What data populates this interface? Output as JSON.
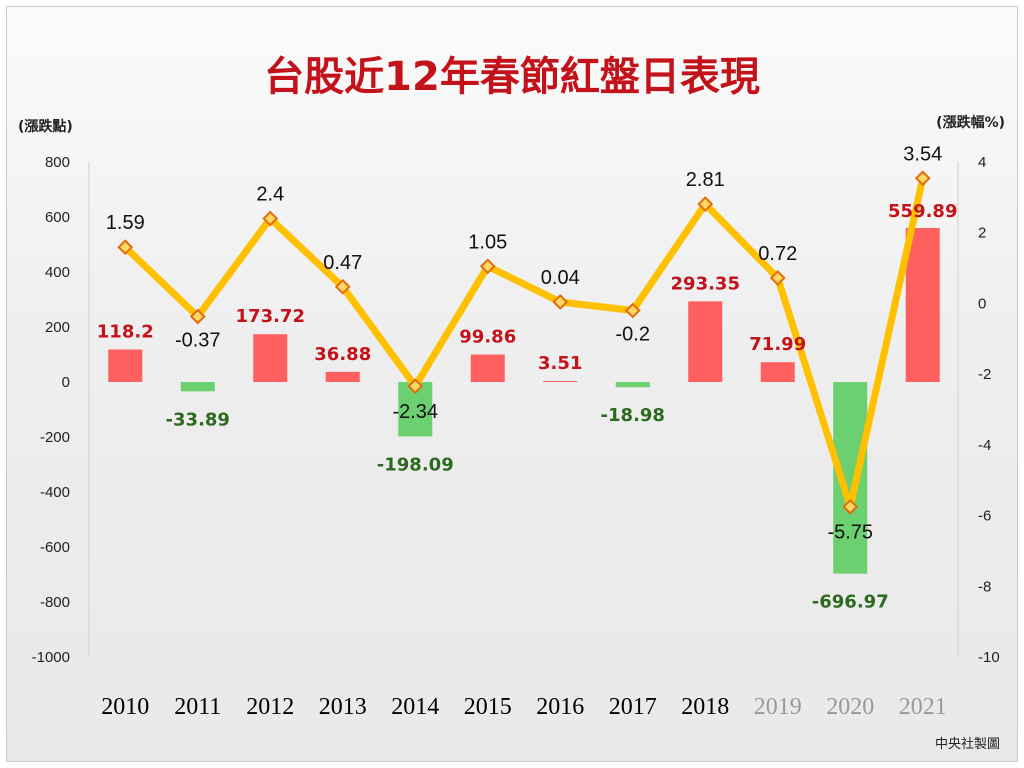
{
  "chart_data": {
    "type": "bar",
    "title": "台股近12年春節紅盤日表現",
    "ylabel_left": "(漲跌點)",
    "ylabel_right": "(漲跌幅%)",
    "credit": "中央社製圖",
    "categories": [
      "2010",
      "2011",
      "2012",
      "2013",
      "2014",
      "2015",
      "2016",
      "2017",
      "2018",
      "2019",
      "2020",
      "2021"
    ],
    "series": [
      {
        "name": "漲跌點",
        "type": "bar",
        "axis": "left",
        "values": [
          118.2,
          -33.89,
          173.72,
          36.88,
          -198.09,
          99.86,
          3.51,
          -18.98,
          293.35,
          71.99,
          -696.97,
          559.89
        ],
        "labels": [
          "118.2",
          "-33.89",
          "173.72",
          "36.88",
          "-198.09",
          "99.86",
          "3.51",
          "-18.98",
          "293.35",
          "71.99",
          "-696.97",
          "559.89"
        ]
      },
      {
        "name": "漲跌幅%",
        "type": "line",
        "axis": "right",
        "values": [
          1.59,
          -0.37,
          2.4,
          0.47,
          -2.34,
          1.05,
          0.04,
          -0.2,
          2.81,
          0.72,
          -5.75,
          3.54
        ],
        "labels": [
          "1.59",
          "-0.37",
          "2.4",
          "0.47",
          "-2.34",
          "1.05",
          "0.04",
          "-0.2",
          "2.81",
          "0.72",
          "-5.75",
          "3.54"
        ]
      }
    ],
    "ylim_left": [
      -1000,
      800
    ],
    "yticks_left": [
      "800",
      "600",
      "400",
      "200",
      "0",
      "-200",
      "-400",
      "-600",
      "-800",
      "-1000"
    ],
    "ylim_right": [
      -10,
      4
    ],
    "yticks_right": [
      "4",
      "2",
      "0",
      "-2",
      "-4",
      "-6",
      "-8",
      "-10"
    ],
    "colors": {
      "up_bar": "#ff5f5f",
      "down_bar": "#6ccf70",
      "up_label": "#c4121b",
      "down_label": "#2d6a1f",
      "line": "#ffc000",
      "marker_fill": "#ffd966",
      "marker_stroke": "#e46c0a",
      "title": "#c4121b"
    },
    "faded_categories": [
      "2019",
      "2020",
      "2021"
    ]
  }
}
